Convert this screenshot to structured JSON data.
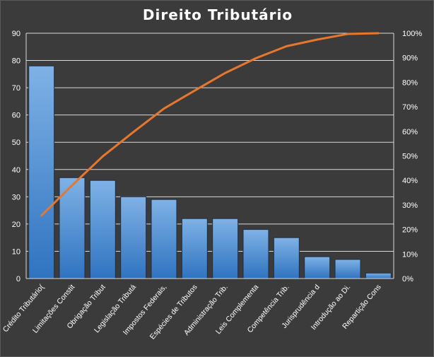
{
  "chart_data": {
    "type": "bar",
    "title": "Direito  Tributário",
    "categories": [
      "Crédito Tributário(",
      "Limitações Constit",
      "Obrigação Tribut",
      "Legislação Tributá",
      "Impostos Federais,",
      "Espécies de Tributos",
      "Administração Trib.",
      "Leis Complementa",
      "Competência Trib.",
      "Jurisprudência d",
      "Introdução ao Di.",
      "Repartição Cons"
    ],
    "values": [
      78,
      37,
      36,
      30,
      29,
      22,
      22,
      18,
      15,
      8,
      7,
      2
    ],
    "line_series": {
      "axis": "right",
      "values": [
        25.7,
        38.0,
        49.8,
        59.7,
        69.3,
        76.6,
        83.8,
        89.8,
        94.7,
        97.4,
        99.7,
        100
      ]
    },
    "ylim": [
      0,
      90
    ],
    "yticks": [
      0,
      10,
      20,
      30,
      40,
      50,
      60,
      70,
      80,
      90
    ],
    "y2lim": [
      0,
      100
    ],
    "y2ticks": [
      "0%",
      "10%",
      "20%",
      "30%",
      "40%",
      "50%",
      "60%",
      "70%",
      "80%",
      "90%",
      "100%"
    ],
    "grid": true,
    "legend": "none",
    "colors": {
      "background": "#3b3b3b",
      "bar_top": "#7fb2e6",
      "bar_bottom": "#2f73c0",
      "bar_edge": "#1e2f45",
      "line": "#e8772e",
      "grid": "#d9d9d9",
      "text": "#ffffff"
    }
  }
}
